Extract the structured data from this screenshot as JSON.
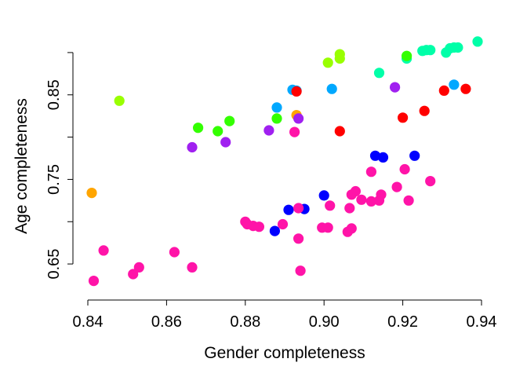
{
  "chart_data": {
    "type": "scatter",
    "title": "",
    "xlabel": "Gender completeness",
    "ylabel": "Age completeness",
    "xlim": [
      0.84,
      0.94
    ],
    "ylim": [
      0.625,
      0.925
    ],
    "xticks": [
      0.84,
      0.86,
      0.88,
      0.9,
      0.92,
      0.94
    ],
    "xtick_labels": [
      "0.84",
      "0.86",
      "0.88",
      "0.90",
      "0.92",
      "0.94"
    ],
    "yticks": [
      0.65,
      0.75,
      0.85
    ],
    "ytick_labels": [
      "0.65",
      "0.75",
      "0.85"
    ],
    "grid": false,
    "legend": "none",
    "points": [
      {
        "x": 0.939,
        "y": 0.913,
        "color": "#00FFA8"
      },
      {
        "x": 0.934,
        "y": 0.906,
        "color": "#00FFA8"
      },
      {
        "x": 0.933,
        "y": 0.906,
        "color": "#00FFA8"
      },
      {
        "x": 0.932,
        "y": 0.905,
        "color": "#00FFA8"
      },
      {
        "x": 0.931,
        "y": 0.9,
        "color": "#00FFA8"
      },
      {
        "x": 0.927,
        "y": 0.903,
        "color": "#00FFA8"
      },
      {
        "x": 0.926,
        "y": 0.903,
        "color": "#00FFA8"
      },
      {
        "x": 0.925,
        "y": 0.902,
        "color": "#00FFA8"
      },
      {
        "x": 0.921,
        "y": 0.893,
        "color": "#00FFA8"
      },
      {
        "x": 0.914,
        "y": 0.876,
        "color": "#00FFA8"
      },
      {
        "x": 0.921,
        "y": 0.896,
        "color": "#33FF00"
      },
      {
        "x": 0.888,
        "y": 0.822,
        "color": "#33FF00"
      },
      {
        "x": 0.876,
        "y": 0.819,
        "color": "#33FF00"
      },
      {
        "x": 0.868,
        "y": 0.811,
        "color": "#33FF00"
      },
      {
        "x": 0.873,
        "y": 0.807,
        "color": "#33FF00"
      },
      {
        "x": 0.904,
        "y": 0.898,
        "color": "#99FF00"
      },
      {
        "x": 0.904,
        "y": 0.893,
        "color": "#99FF00"
      },
      {
        "x": 0.901,
        "y": 0.888,
        "color": "#99FF00"
      },
      {
        "x": 0.848,
        "y": 0.843,
        "color": "#99FF00"
      },
      {
        "x": 0.892,
        "y": 0.856,
        "color": "#00A8FF"
      },
      {
        "x": 0.893,
        "y": 0.855,
        "color": "#00A8FF"
      },
      {
        "x": 0.902,
        "y": 0.857,
        "color": "#00A8FF"
      },
      {
        "x": 0.933,
        "y": 0.862,
        "color": "#00A8FF"
      },
      {
        "x": 0.888,
        "y": 0.835,
        "color": "#00A8FF"
      },
      {
        "x": 0.936,
        "y": 0.857,
        "color": "#FF0000"
      },
      {
        "x": 0.9305,
        "y": 0.855,
        "color": "#FF0000"
      },
      {
        "x": 0.893,
        "y": 0.854,
        "color": "#FF0000"
      },
      {
        "x": 0.9255,
        "y": 0.831,
        "color": "#FF0000"
      },
      {
        "x": 0.92,
        "y": 0.823,
        "color": "#FF0000"
      },
      {
        "x": 0.904,
        "y": 0.807,
        "color": "#FF0000"
      },
      {
        "x": 0.893,
        "y": 0.826,
        "color": "#FFA500"
      },
      {
        "x": 0.841,
        "y": 0.734,
        "color": "#FFA500"
      },
      {
        "x": 0.918,
        "y": 0.859,
        "color": "#A020F0"
      },
      {
        "x": 0.8935,
        "y": 0.822,
        "color": "#A020F0"
      },
      {
        "x": 0.886,
        "y": 0.808,
        "color": "#A020F0"
      },
      {
        "x": 0.875,
        "y": 0.794,
        "color": "#A020F0"
      },
      {
        "x": 0.8665,
        "y": 0.788,
        "color": "#A020F0"
      },
      {
        "x": 0.913,
        "y": 0.778,
        "color": "#0000FF"
      },
      {
        "x": 0.915,
        "y": 0.776,
        "color": "#0000FF"
      },
      {
        "x": 0.923,
        "y": 0.778,
        "color": "#0000FF"
      },
      {
        "x": 0.9,
        "y": 0.731,
        "color": "#0000FF"
      },
      {
        "x": 0.891,
        "y": 0.714,
        "color": "#0000FF"
      },
      {
        "x": 0.895,
        "y": 0.715,
        "color": "#0000FF"
      },
      {
        "x": 0.8875,
        "y": 0.689,
        "color": "#0000FF"
      },
      {
        "x": 0.8925,
        "y": 0.806,
        "color": "#FF14A8"
      },
      {
        "x": 0.9205,
        "y": 0.762,
        "color": "#FF14A8"
      },
      {
        "x": 0.912,
        "y": 0.759,
        "color": "#FF14A8"
      },
      {
        "x": 0.927,
        "y": 0.748,
        "color": "#FF14A8"
      },
      {
        "x": 0.9185,
        "y": 0.741,
        "color": "#FF14A8"
      },
      {
        "x": 0.908,
        "y": 0.736,
        "color": "#FF14A8"
      },
      {
        "x": 0.907,
        "y": 0.732,
        "color": "#FF14A8"
      },
      {
        "x": 0.9145,
        "y": 0.732,
        "color": "#FF14A8"
      },
      {
        "x": 0.9095,
        "y": 0.726,
        "color": "#FF14A8"
      },
      {
        "x": 0.912,
        "y": 0.724,
        "color": "#FF14A8"
      },
      {
        "x": 0.914,
        "y": 0.725,
        "color": "#FF14A8"
      },
      {
        "x": 0.9215,
        "y": 0.725,
        "color": "#FF14A8"
      },
      {
        "x": 0.9015,
        "y": 0.719,
        "color": "#FF14A8"
      },
      {
        "x": 0.9065,
        "y": 0.716,
        "color": "#FF14A8"
      },
      {
        "x": 0.8935,
        "y": 0.716,
        "color": "#FF14A8"
      },
      {
        "x": 0.88,
        "y": 0.7,
        "color": "#FF14A8"
      },
      {
        "x": 0.8805,
        "y": 0.697,
        "color": "#FF14A8"
      },
      {
        "x": 0.882,
        "y": 0.695,
        "color": "#FF14A8"
      },
      {
        "x": 0.8835,
        "y": 0.694,
        "color": "#FF14A8"
      },
      {
        "x": 0.8895,
        "y": 0.697,
        "color": "#FF14A8"
      },
      {
        "x": 0.8995,
        "y": 0.693,
        "color": "#FF14A8"
      },
      {
        "x": 0.901,
        "y": 0.693,
        "color": "#FF14A8"
      },
      {
        "x": 0.907,
        "y": 0.692,
        "color": "#FF14A8"
      },
      {
        "x": 0.906,
        "y": 0.688,
        "color": "#FF14A8"
      },
      {
        "x": 0.8935,
        "y": 0.68,
        "color": "#FF14A8"
      },
      {
        "x": 0.844,
        "y": 0.666,
        "color": "#FF14A8"
      },
      {
        "x": 0.862,
        "y": 0.664,
        "color": "#FF14A8"
      },
      {
        "x": 0.853,
        "y": 0.646,
        "color": "#FF14A8"
      },
      {
        "x": 0.8665,
        "y": 0.646,
        "color": "#FF14A8"
      },
      {
        "x": 0.8515,
        "y": 0.638,
        "color": "#FF14A8"
      },
      {
        "x": 0.894,
        "y": 0.642,
        "color": "#FF14A8"
      },
      {
        "x": 0.8415,
        "y": 0.63,
        "color": "#FF14A8"
      }
    ]
  }
}
